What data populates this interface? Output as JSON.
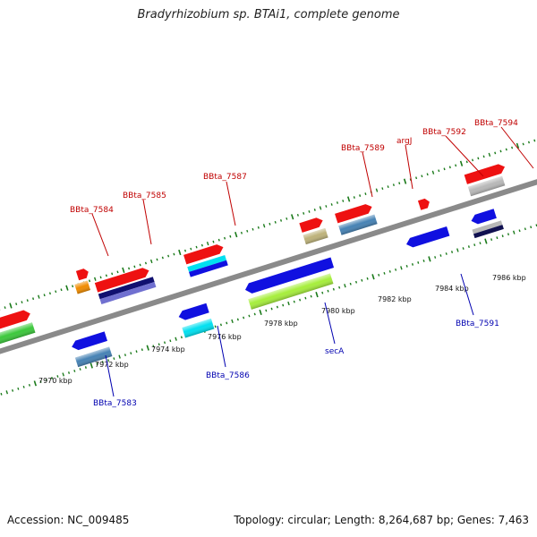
{
  "title": "Bradyrhizobium sp. BTAi1, complete genome",
  "accession": "Accession: NC_009485",
  "summary": "Topology: circular; Length: 8,264,687 bp; Genes: 7,463",
  "scale": {
    "unit_suffix": " kbp",
    "ticks": [
      {
        "label": "7970 kbp",
        "kb": 7970
      },
      {
        "label": "7972 kbp",
        "kb": 7972
      },
      {
        "label": "7974 kbp",
        "kb": 7974
      },
      {
        "label": "7976 kbp",
        "kb": 7976
      },
      {
        "label": "7978 kbp",
        "kb": 7978
      },
      {
        "label": "7980 kbp",
        "kb": 7980
      },
      {
        "label": "7982 kbp",
        "kb": 7982
      },
      {
        "label": "7984 kbp",
        "kb": 7984
      },
      {
        "label": "7986 kbp",
        "kb": 7986
      }
    ]
  },
  "genes_forward": [
    {
      "label": "",
      "color": "#3cc83c"
    },
    {
      "label": "BBta_7584",
      "color": "#f08c00"
    },
    {
      "label": "BBta_7585",
      "color": "#101070"
    },
    {
      "label": "BBta_7587",
      "color": "#00e0f0"
    },
    {
      "label": "BBta_7589",
      "color": "#bdb27a"
    },
    {
      "label": "argJ",
      "color": "#4682b4"
    },
    {
      "label": "BBta_7592",
      "color": "#ee1111"
    },
    {
      "label": "BBta_7594",
      "color": "#b8b8b8"
    }
  ],
  "genes_reverse": [
    {
      "label": "BBta_7583",
      "color": "#1010e0"
    },
    {
      "label": "BBta_7586",
      "color": "#1010e0"
    },
    {
      "label": "secA",
      "color": "#1010e0"
    },
    {
      "label": "BBta_7591",
      "color": "#1010e0"
    }
  ],
  "colors": {
    "backbone": "#8a8a8a",
    "tick": "#1a7a1a",
    "label_top": "#c00000",
    "label_bottom": "#0000b0",
    "rna_red": "#ee1111"
  }
}
